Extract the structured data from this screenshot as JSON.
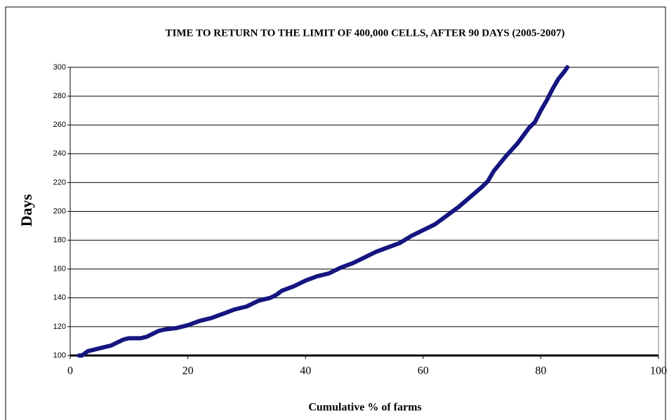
{
  "chart_data": {
    "type": "line",
    "title": "TIME TO RETURN TO THE LIMIT OF 400,000 CELLS, AFTER 90 DAYS (2005-2007)",
    "x_label": "Cumulative % of farms",
    "y_label": "Days",
    "x": [
      1.5,
      2,
      3,
      4,
      5,
      6,
      7,
      8,
      9,
      10,
      12,
      13,
      14,
      15,
      16,
      18,
      20,
      22,
      24,
      26,
      28,
      30,
      32,
      34,
      35,
      36,
      38,
      40,
      42,
      44,
      46,
      48,
      50,
      52,
      54,
      56,
      58,
      60,
      62,
      64,
      66,
      68,
      70,
      71,
      72,
      74,
      76,
      78,
      79,
      80,
      81,
      82,
      83,
      84,
      84.5
    ],
    "values": [
      100,
      100,
      103,
      104,
      105,
      106,
      107,
      109,
      111,
      112,
      112,
      113,
      115,
      117,
      118,
      119,
      121,
      124,
      126,
      129,
      132,
      134,
      138,
      140,
      142,
      145,
      148,
      152,
      155,
      157,
      161,
      164,
      168,
      172,
      175,
      178,
      183,
      187,
      191,
      197,
      203,
      210,
      217,
      221,
      228,
      238,
      247,
      258,
      262,
      270,
      277,
      285,
      292,
      297,
      300
    ],
    "color": "#151580",
    "xlim": [
      0,
      100
    ],
    "xticks": [
      0,
      20,
      40,
      60,
      80,
      100
    ],
    "ylim": [
      100,
      300
    ],
    "yticks": [
      100,
      120,
      140,
      160,
      180,
      200,
      220,
      240,
      260,
      280,
      300
    ],
    "grid": true
  }
}
